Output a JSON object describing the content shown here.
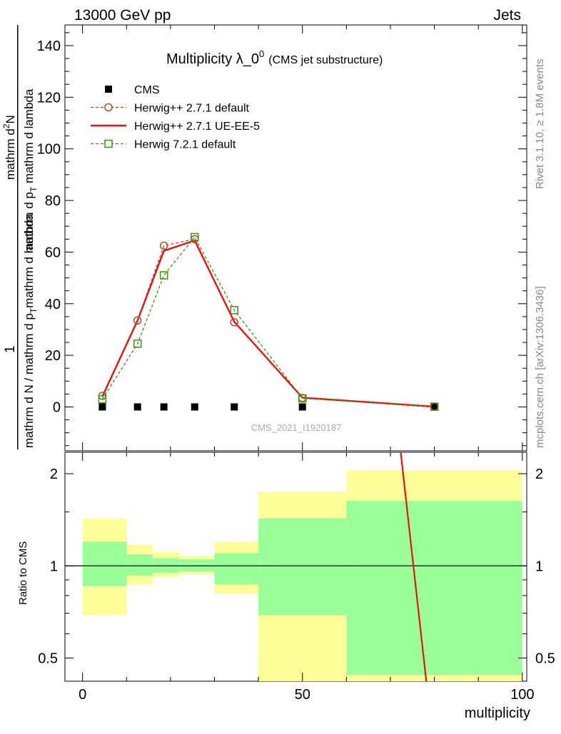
{
  "header": {
    "left": "13000 GeV pp",
    "right": "Jets",
    "title": "Multiplicity λ_0",
    "title_sup": "0",
    "title_note": "(CMS jet substructure)",
    "analysis_id": "CMS_2021_I1920187"
  },
  "side_labels": {
    "upper": "Rivet 3.1.10, ≥ 1.8M events",
    "lower": "mcplots.cern.ch [arXiv:1306.3436]"
  },
  "ylabel": {
    "numerator": "1",
    "denominator": "mathrm d N / mathrm d p",
    "denominator_sub": "T",
    "denominator_tail": "mathrm d lambda",
    "num2": "mathrm d",
    "num2_sup": "2",
    "num2_tail": "N",
    "den2": "mathrm d p",
    "den2_sub": "T",
    "den2_tail": " mathrm d lambda"
  },
  "legend": [
    {
      "label": "CMS",
      "marker": "filled-square",
      "color": "#000000"
    },
    {
      "label": "Herwig++ 2.7.1 default",
      "marker": "open-circle",
      "color": "#a0522d",
      "dash": true
    },
    {
      "label": "Herwig++ 2.7.1 UE-EE-5",
      "marker": "line",
      "color": "#ee1111",
      "dash": false
    },
    {
      "label": "Herwig 7.2.1 default",
      "marker": "open-square",
      "color": "#3c9410",
      "dash": true
    }
  ],
  "chart_data": [
    {
      "type": "line",
      "panel": "main",
      "title": "Multiplicity λ_0^0 (CMS jet substructure)",
      "xlabel": "multiplicity",
      "xlim": [
        -4,
        101
      ],
      "ylim": [
        -17,
        148
      ],
      "yticks": [
        0,
        20,
        40,
        60,
        80,
        100,
        120,
        140
      ],
      "xticks": [
        0,
        50,
        100
      ],
      "x": [
        4.5,
        12.5,
        18.5,
        25.5,
        34.5,
        50,
        80
      ],
      "series": [
        {
          "name": "CMS",
          "values": [
            0,
            0,
            0,
            0,
            0,
            0,
            0
          ],
          "color": "#000000",
          "style": "marker"
        },
        {
          "name": "Herwig++ 2.7.1 default",
          "values": [
            4.3,
            33.5,
            62.5,
            65.0,
            32.8,
            3.5,
            0.1
          ],
          "color": "#a0522d",
          "style": "dashed-circle"
        },
        {
          "name": "Herwig++ 2.7.1 UE-EE-5",
          "values": [
            4.0,
            33.5,
            60.5,
            64.5,
            33.0,
            3.6,
            0.1
          ],
          "color": "#ee1111",
          "style": "solid"
        },
        {
          "name": "Herwig 7.2.1 default",
          "values": [
            3.0,
            24.5,
            51.0,
            65.8,
            37.5,
            3.3,
            0.1
          ],
          "color": "#3c9410",
          "style": "dashed-square"
        }
      ]
    },
    {
      "type": "area",
      "panel": "ratio",
      "ylabel": "Ratio to CMS",
      "xlabel": "multiplicity",
      "log_y": true,
      "ylim": [
        0.42,
        2.35
      ],
      "yticks": [
        0.5,
        1,
        2
      ],
      "xlim": [
        -4,
        101
      ],
      "bins": [
        {
          "x0": 0,
          "x1": 10,
          "green": [
            0.86,
            1.2
          ],
          "yellow": [
            0.69,
            1.43
          ]
        },
        {
          "x0": 10,
          "x1": 16,
          "green": [
            0.93,
            1.09
          ],
          "yellow": [
            0.87,
            1.17
          ]
        },
        {
          "x0": 16,
          "x1": 22,
          "green": [
            0.95,
            1.06
          ],
          "yellow": [
            0.92,
            1.11
          ]
        },
        {
          "x0": 22,
          "x1": 30,
          "green": [
            0.96,
            1.05
          ],
          "yellow": [
            0.94,
            1.08
          ]
        },
        {
          "x0": 30,
          "x1": 40,
          "green": [
            0.87,
            1.1
          ],
          "yellow": [
            0.81,
            1.2
          ]
        },
        {
          "x0": 40,
          "x1": 60,
          "green": [
            0.69,
            1.43
          ],
          "yellow": [
            0.38,
            1.75
          ]
        },
        {
          "x0": 60,
          "x1": 100,
          "green": [
            0.44,
            1.63
          ],
          "yellow": [
            0.41,
            2.05
          ]
        }
      ],
      "series": [
        {
          "name": "Herwig++ 2.7.1 UE-EE-5",
          "x": [
            72,
            78.5
          ],
          "values": [
            2.6,
            0.38
          ],
          "color": "#ee1111"
        }
      ]
    }
  ]
}
